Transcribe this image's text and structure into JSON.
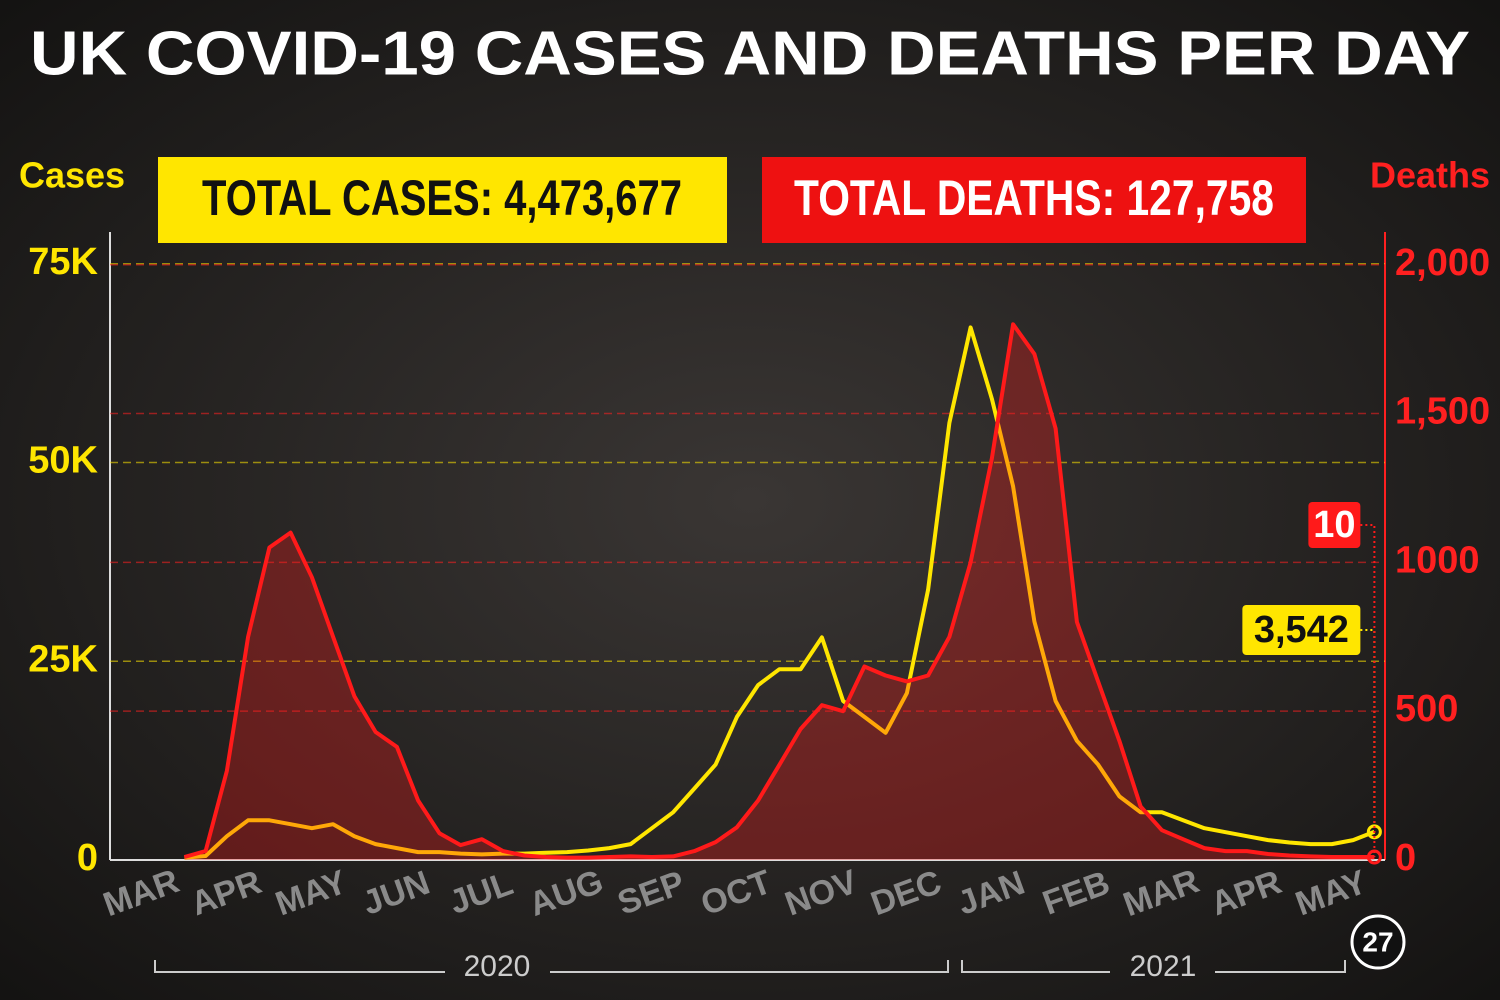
{
  "chart_data": {
    "type": "line",
    "title": "UK COVID-19 CASES AND DEATHS PER DAY",
    "total_cases": "TOTAL CASES: 4,473,677",
    "total_deaths": "TOTAL DEATHS: 127,758",
    "y_label": "Cases",
    "y2_label": "Deaths",
    "years": [
      "2020",
      "2021"
    ],
    "end_date": "27",
    "categories": [
      null,
      "MAR",
      null,
      null,
      null,
      "APR",
      null,
      null,
      null,
      "MAY",
      null,
      null,
      null,
      "JUN",
      null,
      null,
      null,
      "JUL",
      null,
      null,
      null,
      "AUG",
      null,
      null,
      null,
      "SEP",
      null,
      null,
      null,
      "OCT",
      null,
      null,
      null,
      "NOV",
      null,
      null,
      null,
      "DEC",
      null,
      null,
      null,
      "JAN",
      null,
      null,
      null,
      "FEB",
      null,
      null,
      null,
      "MAR",
      null,
      null,
      null,
      "APR",
      null,
      null,
      null,
      "MAY",
      null,
      null
    ],
    "series": [
      {
        "name": "Cases",
        "color": "#ffe600",
        "axis": "y",
        "values": [
          null,
          null,
          null,
          300,
          500,
          3000,
          5000,
          5000,
          4500,
          4000,
          4500,
          3000,
          2000,
          1500,
          1000,
          1000,
          800,
          700,
          800,
          800,
          900,
          1000,
          1200,
          1500,
          2000,
          4000,
          6000,
          9000,
          12000,
          18000,
          22000,
          24000,
          24000,
          28000,
          20000,
          18000,
          16000,
          21000,
          34000,
          55000,
          67000,
          58000,
          47000,
          30000,
          20000,
          15000,
          12000,
          8000,
          6000,
          6000,
          5000,
          4000,
          3500,
          3000,
          2500,
          2200,
          2000,
          2000,
          2500,
          3542
        ],
        "value_labels": [
          null,
          null,
          null,
          null,
          null,
          null,
          null,
          null,
          null,
          null,
          null,
          null,
          null,
          null,
          null,
          null,
          null,
          null,
          null,
          null,
          null,
          null,
          null,
          null,
          null,
          null,
          null,
          null,
          null,
          null,
          null,
          null,
          null,
          null,
          null,
          null,
          null,
          null,
          null,
          null,
          null,
          null,
          null,
          null,
          null,
          null,
          null,
          null,
          null,
          null,
          null,
          null,
          null,
          null,
          null,
          null,
          null,
          null,
          null,
          "3,542"
        ]
      },
      {
        "name": "Deaths",
        "color": "#ff1a1a",
        "axis": "y2",
        "values": [
          null,
          null,
          null,
          10,
          30,
          300,
          750,
          1050,
          1100,
          950,
          750,
          550,
          430,
          380,
          200,
          90,
          50,
          70,
          30,
          15,
          10,
          8,
          8,
          10,
          12,
          10,
          12,
          30,
          60,
          110,
          200,
          320,
          440,
          520,
          500,
          650,
          620,
          600,
          620,
          750,
          1000,
          1350,
          1800,
          1700,
          1450,
          800,
          600,
          400,
          180,
          100,
          70,
          40,
          30,
          30,
          20,
          15,
          12,
          10,
          10,
          10
        ],
        "value_labels": [
          null,
          null,
          null,
          null,
          null,
          null,
          null,
          null,
          null,
          null,
          null,
          null,
          null,
          null,
          null,
          null,
          null,
          null,
          null,
          null,
          null,
          null,
          null,
          null,
          null,
          null,
          null,
          null,
          null,
          null,
          null,
          null,
          null,
          null,
          null,
          null,
          null,
          null,
          null,
          null,
          null,
          null,
          null,
          null,
          null,
          null,
          null,
          null,
          null,
          null,
          null,
          null,
          null,
          null,
          null,
          null,
          null,
          null,
          null,
          "10"
        ]
      }
    ],
    "ylim": [
      0,
      79000
    ],
    "yticks": [
      0,
      {
        "value": 25000,
        "label": "25K"
      },
      {
        "value": 50000,
        "label": "50K"
      },
      {
        "value": 75000,
        "label": "75K"
      }
    ],
    "y2lim": [
      0,
      2110
    ],
    "y2ticks": [
      0,
      500,
      1000,
      {
        "value": 1500,
        "label": "1,500"
      },
      {
        "value": 2000,
        "label": "2,000"
      }
    ],
    "grid": true
  }
}
